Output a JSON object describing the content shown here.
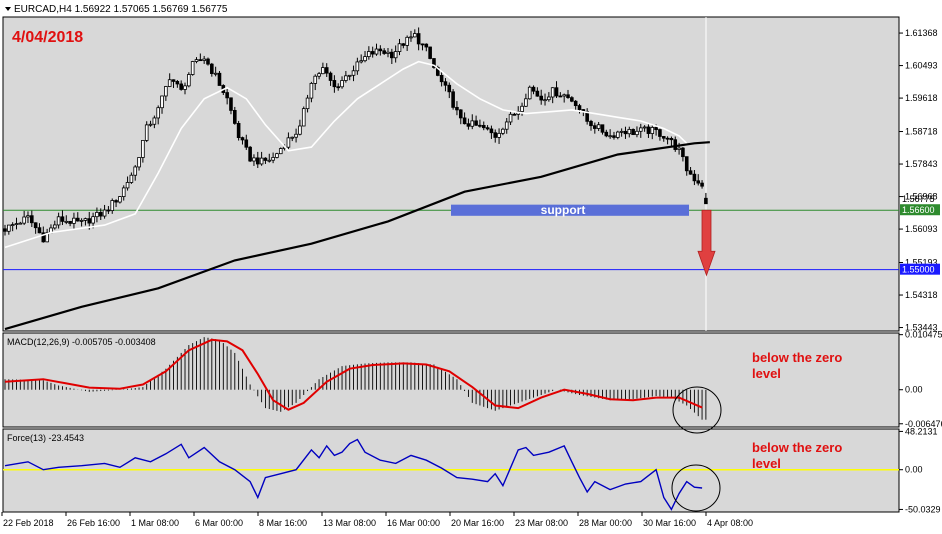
{
  "header": {
    "symbol_line": "EURCAD,H4  1.56922 1.57065 1.56769 1.56775",
    "date_label": "4/04/2018"
  },
  "colors": {
    "plot_bg": "#d8d8d8",
    "candle": "#000000",
    "sma_fast": "#ffffff",
    "sma_slow": "#000000",
    "support_line": "#2e8b2e",
    "target_line": "#1a1aff",
    "support_box": "#5a6fd8",
    "arrow": "#e04040",
    "macd_signal": "#e00000",
    "force_line": "#0000c0",
    "zero_line": "#ffff00",
    "annotation": "#e01010"
  },
  "chart_data": [
    {
      "type": "candlestick",
      "panel": "price",
      "symbol": "EURCAD",
      "timeframe": "H4",
      "ohlc_last": {
        "open": 1.56922,
        "high": 1.57065,
        "low": 1.56769,
        "close": 1.56775
      },
      "ylim": [
        1.5335,
        1.618
      ],
      "y_ticks": [
        "1.61368",
        "1.60493",
        "1.59618",
        "1.58718",
        "1.57843",
        "1.56968",
        "1.56093",
        "1.55193",
        "1.54318",
        "1.53443"
      ],
      "x_ticks": [
        "22 Feb 2018",
        "26 Feb 16:00",
        "1 Mar 08:00",
        "6 Mar 00:00",
        "8 Mar 16:00",
        "13 Mar 08:00",
        "16 Mar 00:00",
        "20 Mar 16:00",
        "23 Mar 08:00",
        "28 Mar 00:00",
        "30 Mar 16:00",
        "4 Apr 08:00"
      ],
      "price_path": [
        [
          0,
          1.561
        ],
        [
          6,
          1.564
        ],
        [
          10,
          1.5585
        ],
        [
          14,
          1.5635
        ],
        [
          20,
          1.5625
        ],
        [
          26,
          1.5655
        ],
        [
          30,
          1.57
        ],
        [
          34,
          1.5775
        ],
        [
          37,
          1.588
        ],
        [
          40,
          1.593
        ],
        [
          43,
          1.602
        ],
        [
          46,
          1.598
        ],
        [
          49,
          1.605
        ],
        [
          52,
          1.607
        ],
        [
          55,
          1.602
        ],
        [
          58,
          1.596
        ],
        [
          61,
          1.586
        ],
        [
          64,
          1.58
        ],
        [
          67,
          1.579
        ],
        [
          70,
          1.58
        ],
        [
          73,
          1.584
        ],
        [
          77,
          1.588
        ],
        [
          80,
          1.601
        ],
        [
          83,
          1.604
        ],
        [
          86,
          1.599
        ],
        [
          89,
          1.602
        ],
        [
          92,
          1.605
        ],
        [
          95,
          1.608
        ],
        [
          98,
          1.609
        ],
        [
          101,
          1.608
        ],
        [
          104,
          1.611
        ],
        [
          107,
          1.613
        ],
        [
          110,
          1.609
        ],
        [
          113,
          1.602
        ],
        [
          116,
          1.597
        ],
        [
          119,
          1.59
        ],
        [
          122,
          1.589
        ],
        [
          125,
          1.588
        ],
        [
          128,
          1.586
        ],
        [
          131,
          1.59
        ],
        [
          134,
          1.593
        ],
        [
          137,
          1.599
        ],
        [
          140,
          1.596
        ],
        [
          143,
          1.598
        ],
        [
          146,
          1.597
        ],
        [
          149,
          1.595
        ],
        [
          152,
          1.59
        ],
        [
          155,
          1.588
        ],
        [
          158,
          1.586
        ],
        [
          161,
          1.5875
        ],
        [
          164,
          1.587
        ],
        [
          167,
          1.5875
        ],
        [
          170,
          1.5872
        ],
        [
          173,
          1.5855
        ],
        [
          176,
          1.582
        ],
        [
          178,
          1.577
        ],
        [
          180,
          1.5745
        ],
        [
          182,
          1.573
        ],
        [
          183,
          1.5728
        ]
      ],
      "moving_averages": [
        {
          "style": "white",
          "path": [
            [
              0,
              1.556
            ],
            [
              12,
              1.56
            ],
            [
              26,
              1.562
            ],
            [
              34,
              1.565
            ],
            [
              40,
              1.576
            ],
            [
              46,
              1.588
            ],
            [
              52,
              1.596
            ],
            [
              58,
              1.599
            ],
            [
              63,
              1.596
            ],
            [
              68,
              1.589
            ],
            [
              74,
              1.582
            ],
            [
              80,
              1.583
            ],
            [
              86,
              1.59
            ],
            [
              92,
              1.596
            ],
            [
              98,
              1.6
            ],
            [
              104,
              1.604
            ],
            [
              108,
              1.606
            ],
            [
              112,
              1.605
            ],
            [
              118,
              1.6
            ],
            [
              124,
              1.596
            ],
            [
              130,
              1.593
            ],
            [
              136,
              1.592
            ],
            [
              142,
              1.5925
            ],
            [
              148,
              1.593
            ],
            [
              154,
              1.592
            ],
            [
              160,
              1.591
            ],
            [
              166,
              1.59
            ],
            [
              172,
              1.588
            ],
            [
              176,
              1.586
            ],
            [
              178,
              1.584
            ]
          ]
        },
        {
          "style": "black",
          "path": [
            [
              0,
              1.534
            ],
            [
              20,
              1.54
            ],
            [
              40,
              1.545
            ],
            [
              60,
              1.5525
            ],
            [
              80,
              1.557
            ],
            [
              100,
              1.563
            ],
            [
              120,
              1.571
            ],
            [
              140,
              1.575
            ],
            [
              160,
              1.581
            ],
            [
              180,
              1.584
            ],
            [
              184,
              1.5843
            ]
          ]
        }
      ],
      "levels": [
        {
          "name": "support",
          "price": 1.566,
          "label": "1.56600",
          "upper_label": "1.56775"
        },
        {
          "name": "target",
          "price": 1.55,
          "label": "1.55000"
        }
      ],
      "annotations": {
        "support_box_label": "support",
        "support_box_range": [
          1.5645,
          1.5675
        ],
        "arrow": {
          "direction": "down",
          "from": 1.566,
          "to": 1.5485
        }
      }
    },
    {
      "type": "histogram+line",
      "panel": "macd",
      "title": "MACD(12,26,9) -0.005705 -0.003408",
      "params": [
        12,
        26,
        9
      ],
      "main_last": -0.005705,
      "signal_last": -0.003408,
      "ylim": [
        -0.0069,
        0.0106
      ],
      "y_ticks": [
        "0.010475",
        "0.00",
        "-0.006476"
      ],
      "macd_path": [
        [
          0,
          0.002
        ],
        [
          10,
          0.0018
        ],
        [
          14,
          0.0008
        ],
        [
          22,
          -0.0004
        ],
        [
          30,
          0.0
        ],
        [
          36,
          0.0005
        ],
        [
          42,
          0.004
        ],
        [
          48,
          0.0085
        ],
        [
          52,
          0.01
        ],
        [
          56,
          0.0095
        ],
        [
          60,
          0.007
        ],
        [
          64,
          0.001
        ],
        [
          68,
          -0.0035
        ],
        [
          72,
          -0.0042
        ],
        [
          76,
          -0.0025
        ],
        [
          82,
          0.002
        ],
        [
          88,
          0.0045
        ],
        [
          94,
          0.005
        ],
        [
          100,
          0.0052
        ],
        [
          106,
          0.0052
        ],
        [
          112,
          0.0048
        ],
        [
          118,
          0.002
        ],
        [
          122,
          -0.0025
        ],
        [
          128,
          -0.004
        ],
        [
          136,
          -0.002
        ],
        [
          144,
          0.0
        ],
        [
          150,
          -0.001
        ],
        [
          158,
          -0.002
        ],
        [
          164,
          -0.0018
        ],
        [
          170,
          -0.0012
        ],
        [
          174,
          -0.0015
        ],
        [
          178,
          -0.003
        ],
        [
          182,
          -0.0057
        ]
      ],
      "signal_path": [
        [
          0,
          0.0015
        ],
        [
          10,
          0.002
        ],
        [
          16,
          0.0012
        ],
        [
          22,
          0.0004
        ],
        [
          30,
          0.0002
        ],
        [
          36,
          0.001
        ],
        [
          42,
          0.0035
        ],
        [
          48,
          0.0075
        ],
        [
          54,
          0.0095
        ],
        [
          58,
          0.0092
        ],
        [
          62,
          0.0075
        ],
        [
          66,
          0.003
        ],
        [
          70,
          -0.002
        ],
        [
          74,
          -0.0038
        ],
        [
          78,
          -0.0025
        ],
        [
          84,
          0.0015
        ],
        [
          90,
          0.004
        ],
        [
          96,
          0.0047
        ],
        [
          104,
          0.005
        ],
        [
          110,
          0.0048
        ],
        [
          116,
          0.0035
        ],
        [
          122,
          0.0005
        ],
        [
          128,
          -0.003
        ],
        [
          134,
          -0.0035
        ],
        [
          140,
          -0.0015
        ],
        [
          146,
          0.0
        ],
        [
          152,
          -0.0008
        ],
        [
          158,
          -0.0018
        ],
        [
          164,
          -0.002
        ],
        [
          170,
          -0.0015
        ],
        [
          176,
          -0.0015
        ],
        [
          182,
          -0.0034
        ]
      ],
      "annotation": "below the zero\nlevel"
    },
    {
      "type": "line",
      "panel": "force",
      "title": "Force(13) -23.4543",
      "params": [
        13
      ],
      "last": -23.4543,
      "ylim": [
        -52,
        50
      ],
      "y_ticks": [
        "48.2131",
        "0.00",
        "-50.0329"
      ],
      "force_path": [
        [
          0,
          5
        ],
        [
          6,
          10
        ],
        [
          10,
          0
        ],
        [
          14,
          3
        ],
        [
          20,
          5
        ],
        [
          26,
          8
        ],
        [
          30,
          3
        ],
        [
          34,
          15
        ],
        [
          38,
          10
        ],
        [
          42,
          20
        ],
        [
          46,
          32
        ],
        [
          48,
          15
        ],
        [
          52,
          28
        ],
        [
          56,
          10
        ],
        [
          60,
          0
        ],
        [
          64,
          -15
        ],
        [
          66,
          -35
        ],
        [
          68,
          -10
        ],
        [
          72,
          -5
        ],
        [
          76,
          0
        ],
        [
          80,
          25
        ],
        [
          82,
          15
        ],
        [
          84,
          30
        ],
        [
          86,
          18
        ],
        [
          88,
          22
        ],
        [
          90,
          33
        ],
        [
          92,
          38
        ],
        [
          94,
          22
        ],
        [
          98,
          12
        ],
        [
          102,
          8
        ],
        [
          106,
          18
        ],
        [
          110,
          12
        ],
        [
          114,
          2
        ],
        [
          118,
          -10
        ],
        [
          122,
          -12
        ],
        [
          126,
          -15
        ],
        [
          128,
          -5
        ],
        [
          130,
          -20
        ],
        [
          134,
          25
        ],
        [
          136,
          28
        ],
        [
          138,
          18
        ],
        [
          142,
          22
        ],
        [
          146,
          30
        ],
        [
          148,
          10
        ],
        [
          150,
          -10
        ],
        [
          152,
          -28
        ],
        [
          154,
          -15
        ],
        [
          158,
          -25
        ],
        [
          162,
          -18
        ],
        [
          166,
          -15
        ],
        [
          170,
          0
        ],
        [
          172,
          -35
        ],
        [
          174,
          -50
        ],
        [
          176,
          -30
        ],
        [
          178,
          -15
        ],
        [
          180,
          -22
        ],
        [
          182,
          -23
        ]
      ],
      "zero_line": true,
      "annotation": "below the zero\nlevel"
    }
  ]
}
